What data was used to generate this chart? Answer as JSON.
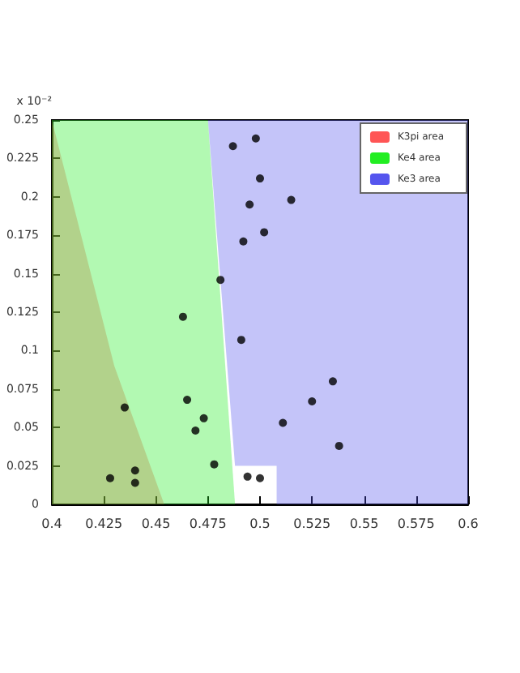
{
  "chart_data": {
    "type": "scatter",
    "ylabel": "x 10⁻²",
    "xlim": [
      0.4,
      0.6
    ],
    "ylim": [
      0,
      0.25
    ],
    "xticks": [
      0.4,
      0.425,
      0.45,
      0.475,
      0.5,
      0.525,
      0.55,
      0.575,
      0.6
    ],
    "yticks": [
      0,
      0.025,
      0.05,
      0.075,
      0.1,
      0.125,
      0.15,
      0.175,
      0.2,
      0.225,
      0.25
    ],
    "grid": false,
    "legend": "top right",
    "series": [
      {
        "type": "area",
        "name": "K3pi area",
        "color": "#ff5555",
        "x": [
          0.4,
          0.454,
          0.43,
          0.4
        ],
        "values": [
          0,
          0,
          0.09,
          0.25
        ]
      },
      {
        "type": "area",
        "name": "Ke4 area",
        "color": "#22ee22",
        "x": [
          0.4,
          0.475,
          0.488,
          0.4
        ],
        "values": [
          0.25,
          0.25,
          0,
          0
        ]
      },
      {
        "type": "area",
        "name": "Ke3 area",
        "color": "#5555ee",
        "x": [
          0.475,
          0.6,
          0.6,
          0.508,
          0.508,
          0.488
        ],
        "values": [
          0.25,
          0.25,
          0,
          0,
          0.025,
          0.025
        ]
      },
      {
        "marker": "circle",
        "color": "#000000",
        "x": [
          0.487,
          0.498,
          0.5,
          0.515,
          0.495,
          0.502,
          0.492,
          0.481,
          0.463,
          0.491,
          0.535,
          0.525,
          0.465,
          0.473,
          0.469,
          0.511,
          0.538,
          0.435,
          0.478,
          0.44,
          0.428,
          0.44,
          0.494,
          0.5
        ],
        "values": [
          0.233,
          0.238,
          0.212,
          0.198,
          0.195,
          0.177,
          0.171,
          0.146,
          0.122,
          0.107,
          0.08,
          0.067,
          0.068,
          0.056,
          0.048,
          0.053,
          0.038,
          0.063,
          0.026,
          0.022,
          0.017,
          0.014,
          0.018,
          0.017
        ]
      }
    ]
  }
}
